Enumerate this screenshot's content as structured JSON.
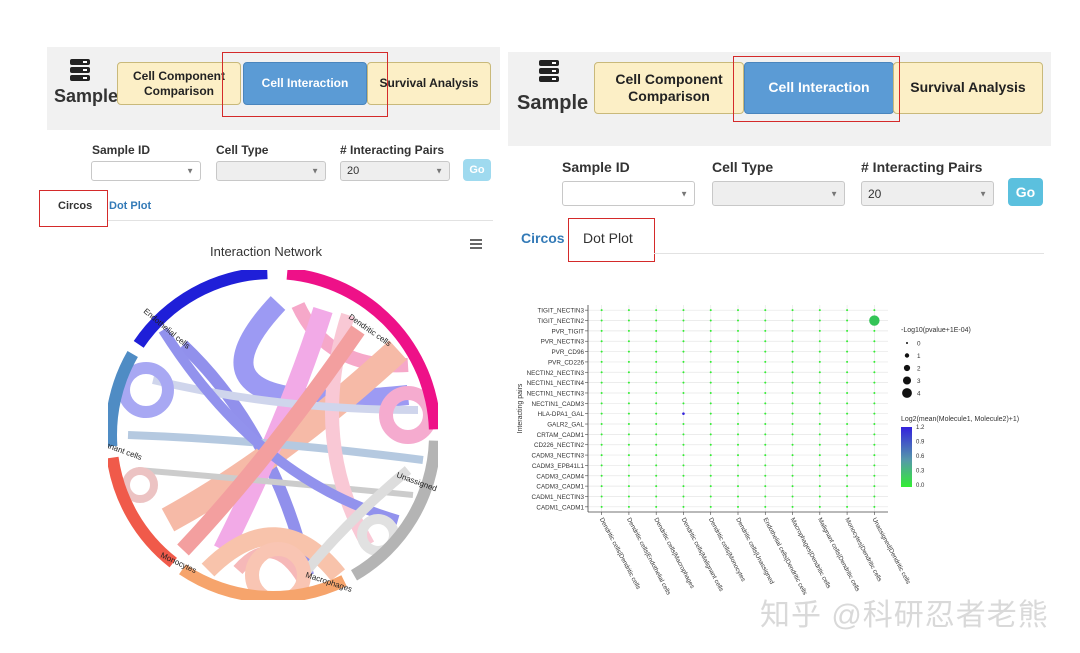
{
  "left_view": {
    "header": {
      "title": "Sample",
      "tabs": [
        {
          "label": "Cell Component Comparison",
          "active": false
        },
        {
          "label": "Cell Interaction",
          "active": true
        },
        {
          "label": "Survival Analysis",
          "active": false
        }
      ]
    },
    "filters": {
      "sample_id_label": "Sample ID",
      "cell_type_label": "Cell Type",
      "pairs_label": "# Interacting Pairs",
      "sample_id_value": "",
      "cell_type_value": "",
      "pairs_value": "20",
      "go_label": "Go"
    },
    "subtabs": {
      "circos": "Circos",
      "dot_plot": "Dot Plot",
      "active": "Circos"
    },
    "circos": {
      "title": "Interaction Network",
      "menu_icon": "hamburger-menu-icon",
      "segments": [
        "Dendritic cells",
        "Unassigned",
        "Macrophages",
        "Monocytes",
        "Malignant cells",
        "Endothelial cells"
      ],
      "colors": {
        "Dendritic cells": "#ee1188",
        "Unassigned": "#b4b4b4",
        "Macrophages": "#f6a46c",
        "Monocytes": "#f05a4a",
        "Malignant cells": "#4f8cc4",
        "Endothelial cells": "#1f1fd8"
      }
    }
  },
  "right_view": {
    "header": {
      "title": "Sample",
      "tabs": [
        {
          "label": "Cell Component Comparison",
          "active": false
        },
        {
          "label": "Cell Interaction",
          "active": true
        },
        {
          "label": "Survival Analysis",
          "active": false
        }
      ]
    },
    "filters": {
      "sample_id_label": "Sample ID",
      "cell_type_label": "Cell Type",
      "pairs_label": "# Interacting Pairs",
      "sample_id_value": "",
      "cell_type_value": "",
      "pairs_value": "20",
      "go_label": "Go"
    },
    "subtabs": {
      "circos": "Circos",
      "dot_plot": "Dot Plot",
      "active": "Dot Plot"
    }
  },
  "chart_data": {
    "type": "scatter",
    "title": "",
    "ylabel": "Interacting pairs",
    "xlabel": "",
    "y_categories": [
      "TIGIT_NECTIN3",
      "TIGIT_NECTIN2",
      "PVR_TIGIT",
      "PVR_NECTIN3",
      "PVR_CD96",
      "PVR_CD226",
      "NECTIN2_NECTIN3",
      "NECTIN1_NECTIN4",
      "NECTIN1_NECTIN3",
      "NECTIN1_CADM3",
      "HLA-DPA1_GAL",
      "GALR2_GAL",
      "CRTAM_CADM1",
      "CD226_NECTIN2",
      "CADM3_NECTIN3",
      "CADM3_EPB41L1",
      "CADM3_CADM4",
      "CADM3_CADM1",
      "CADM1_NECTIN3",
      "CADM1_CADM1"
    ],
    "x_categories": [
      "Dendritic cells|Dendritic cells",
      "Dendritic cells|Endothelial cells",
      "Dendritic cells|Macrophages",
      "Dendritic cells|Malignant cells",
      "Dendritic cells|Monocytes",
      "Dendritic cells|Unassigned",
      "Endothelial cells|Dendritic cells",
      "Macrophages|Dendritic cells",
      "Malignant cells|Dendritic cells",
      "Monocytes|Dendritic cells",
      "Unassigned|Dendritic cells"
    ],
    "default_point": {
      "size_value": 0,
      "color_value": 0.0
    },
    "highlighted_points": [
      {
        "x": "Unassigned|Dendritic cells",
        "y": "TIGIT_NECTIN2",
        "size_value": 3,
        "color_value": 0.25
      },
      {
        "x": "Dendritic cells|Malignant cells",
        "y": "HLA-DPA1_GAL",
        "size_value": 0,
        "color_value": 1.2
      }
    ],
    "size_legend": {
      "title": "-Log10(pvalue+1E-04)",
      "values": [
        0,
        1,
        2,
        3,
        4
      ]
    },
    "color_legend": {
      "title": "Log2(mean(Molecule1, Molecule2)+1)",
      "ticks": [
        "1.2",
        "0.9",
        "0.6",
        "0.3",
        "0.0"
      ],
      "range": [
        0.0,
        1.2
      ],
      "low_color": "#33ee33",
      "high_color": "#3322dd"
    }
  },
  "watermark": "知乎 @科研忍者老熊"
}
